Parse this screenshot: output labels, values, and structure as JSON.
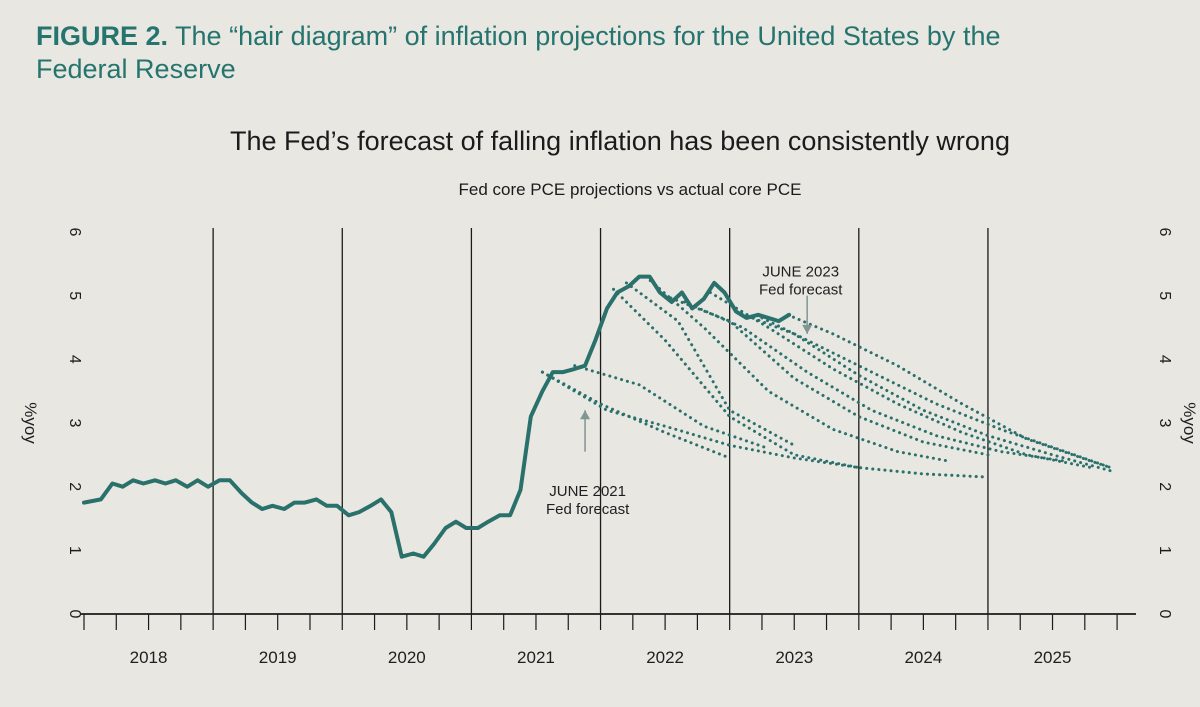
{
  "figure": {
    "label": "FIGURE 2.",
    "caption": "The “hair diagram” of inflation projections for the United States by the Federal Reserve"
  },
  "colors": {
    "line": "#2a706b",
    "annotation": "#7f9693",
    "grid": "#1b1b1b",
    "text": "#1f1f1f",
    "caption": "#26746e",
    "background": "#e9e7e2"
  },
  "chart_data": {
    "type": "line",
    "title": "The Fed’s forecast of falling inflation has been consistently wrong",
    "subtitle": "Fed core PCE projections vs actual core PCE",
    "ylabel": "%yoy",
    "ylabel_right": "%yoy",
    "ylim": [
      0,
      6
    ],
    "yticks": [
      0,
      1,
      2,
      3,
      4,
      5,
      6
    ],
    "xlim": [
      2017.5,
      2025.6
    ],
    "x_tick_labels": [
      "2018",
      "2019",
      "2020",
      "2021",
      "2022",
      "2023",
      "2024",
      "2025"
    ],
    "x_label_positions": [
      2018.0,
      2019.0,
      2020.0,
      2021.0,
      2022.0,
      2023.0,
      2024.0,
      2025.0
    ],
    "vertical_gridlines": [
      2018.5,
      2019.5,
      2020.5,
      2021.5,
      2022.5,
      2023.5,
      2024.5
    ],
    "series": [
      {
        "style": "solid",
        "x": [
          2017.5,
          2017.63,
          2017.72,
          2017.8,
          2017.88,
          2017.96,
          2018.05,
          2018.13,
          2018.21,
          2018.3,
          2018.38,
          2018.46,
          2018.55,
          2018.63,
          2018.72,
          2018.8,
          2018.88,
          2018.96,
          2019.05,
          2019.13,
          2019.21,
          2019.3,
          2019.38,
          2019.46,
          2019.55,
          2019.63,
          2019.72,
          2019.8,
          2019.88,
          2019.96,
          2020.05,
          2020.13,
          2020.21,
          2020.3,
          2020.38,
          2020.46,
          2020.55,
          2020.63,
          2020.72,
          2020.8,
          2020.88,
          2020.96,
          2021.05,
          2021.13,
          2021.21,
          2021.3,
          2021.38,
          2021.46,
          2021.55,
          2021.63,
          2021.72,
          2021.8,
          2021.88,
          2021.96,
          2022.05,
          2022.13,
          2022.21,
          2022.3,
          2022.38,
          2022.46,
          2022.55,
          2022.63,
          2022.72,
          2022.8,
          2022.88,
          2022.96
        ],
        "y": [
          1.75,
          1.8,
          2.05,
          2.0,
          2.1,
          2.05,
          2.1,
          2.05,
          2.1,
          2.0,
          2.1,
          2.0,
          2.1,
          2.1,
          1.9,
          1.75,
          1.65,
          1.7,
          1.65,
          1.75,
          1.75,
          1.8,
          1.7,
          1.7,
          1.55,
          1.6,
          1.7,
          1.8,
          1.6,
          0.9,
          0.95,
          0.9,
          1.1,
          1.35,
          1.45,
          1.35,
          1.35,
          1.45,
          1.55,
          1.55,
          1.95,
          3.1,
          3.5,
          3.8,
          3.8,
          3.85,
          3.9,
          4.3,
          4.8,
          5.05,
          5.15,
          5.3,
          5.3,
          5.05,
          4.9,
          5.05,
          4.8,
          4.95,
          5.2,
          5.05,
          4.75,
          4.65,
          4.7,
          4.65,
          4.6,
          4.7
        ]
      },
      {
        "style": "dotted",
        "forecast": "JUNE 2021 Fed forecast",
        "x": [
          2021.05,
          2021.55,
          2022.0,
          2022.5,
          2023.0,
          2023.5,
          2024.0,
          2024.5
        ],
        "y": [
          3.8,
          3.2,
          2.95,
          2.65,
          2.45,
          2.3,
          2.2,
          2.15
        ]
      },
      {
        "style": "dotted",
        "x": [
          2021.05,
          2021.5,
          2022.0,
          2022.5
        ],
        "y": [
          3.8,
          3.3,
          2.85,
          2.45
        ]
      },
      {
        "style": "dotted",
        "x": [
          2021.3,
          2021.8,
          2022.3,
          2022.8
        ],
        "y": [
          3.9,
          3.6,
          2.95,
          2.6
        ]
      },
      {
        "style": "dotted",
        "x": [
          2021.6,
          2022.0,
          2022.5,
          2023.0,
          2023.5
        ],
        "y": [
          5.1,
          4.3,
          3.1,
          2.5,
          2.3
        ]
      },
      {
        "style": "dotted",
        "x": [
          2021.7,
          2022.1,
          2022.5,
          2023.0
        ],
        "y": [
          5.2,
          4.6,
          3.2,
          2.65
        ]
      },
      {
        "style": "dotted",
        "x": [
          2021.85,
          2022.3,
          2022.8,
          2023.3,
          2023.8,
          2024.2
        ],
        "y": [
          5.3,
          4.5,
          3.5,
          2.9,
          2.55,
          2.4
        ]
      },
      {
        "style": "dotted",
        "x": [
          2022.0,
          2022.5,
          2023.0,
          2023.5,
          2024.0,
          2024.5
        ],
        "y": [
          5.0,
          4.6,
          3.7,
          3.1,
          2.7,
          2.5
        ]
      },
      {
        "style": "dotted",
        "x": [
          2022.15,
          2022.6,
          2023.1,
          2023.6,
          2024.1,
          2024.6,
          2025.1
        ],
        "y": [
          4.9,
          4.5,
          3.8,
          3.2,
          2.8,
          2.55,
          2.4
        ]
      },
      {
        "style": "dotted",
        "x": [
          2022.35,
          2022.8,
          2023.3,
          2023.8,
          2024.3,
          2024.8,
          2025.3
        ],
        "y": [
          5.05,
          4.5,
          3.85,
          3.3,
          2.85,
          2.5,
          2.3
        ]
      },
      {
        "style": "dotted",
        "x": [
          2022.55,
          2023.0,
          2023.5,
          2024.0,
          2024.5,
          2025.0,
          2025.45
        ],
        "y": [
          4.75,
          4.4,
          3.75,
          3.2,
          2.8,
          2.5,
          2.25
        ]
      },
      {
        "style": "dotted",
        "x": [
          2022.75,
          2023.1,
          2023.6,
          2024.1,
          2024.6,
          2025.1,
          2025.45
        ],
        "y": [
          4.65,
          4.3,
          3.8,
          3.3,
          2.9,
          2.55,
          2.3
        ]
      },
      {
        "style": "dotted",
        "forecast": "JUNE 2023 Fed forecast",
        "x": [
          2022.95,
          2023.3,
          2023.8,
          2024.3,
          2024.8,
          2025.3,
          2025.45
        ],
        "y": [
          4.7,
          4.4,
          3.9,
          3.3,
          2.75,
          2.4,
          2.3
        ]
      }
    ],
    "annotations": [
      {
        "line1": "JUNE 2021",
        "line2": "Fed forecast",
        "arrow": "up",
        "x": 2021.4,
        "y": 1.85,
        "arrow_x": 2021.38,
        "arrow_y_from": 2.55,
        "arrow_y_to": 3.2
      },
      {
        "line1": "JUNE 2023",
        "line2": "Fed forecast",
        "arrow": "down",
        "x": 2023.05,
        "y": 5.3,
        "arrow_x": 2023.1,
        "arrow_y_from": 5.0,
        "arrow_y_to": 4.4
      }
    ]
  }
}
